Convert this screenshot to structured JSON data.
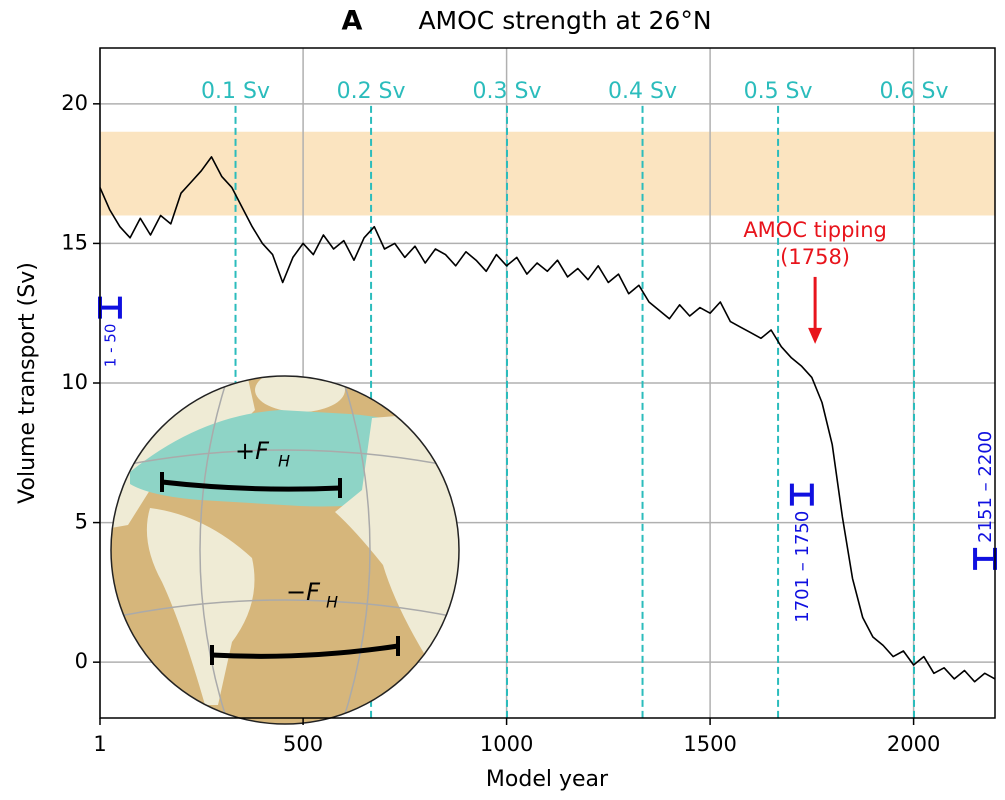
{
  "chart_data": {
    "type": "line",
    "panel_label": "A",
    "title": "AMOC strength at 26°N",
    "x_label": "Model year",
    "y_label": "Volume transport (Sv)",
    "xlim": [
      1,
      2200
    ],
    "ylim": [
      -2,
      22
    ],
    "xticks": [
      1,
      500,
      1000,
      1500,
      2000
    ],
    "yticks": [
      0,
      5,
      10,
      15,
      20
    ],
    "grid": true,
    "color": "#000000",
    "x": [
      1,
      25,
      50,
      75,
      100,
      125,
      150,
      175,
      200,
      225,
      250,
      275,
      300,
      325,
      350,
      375,
      400,
      425,
      450,
      475,
      500,
      525,
      550,
      575,
      600,
      625,
      650,
      675,
      700,
      725,
      750,
      775,
      800,
      825,
      850,
      875,
      900,
      925,
      950,
      975,
      1000,
      1025,
      1050,
      1075,
      1100,
      1125,
      1150,
      1175,
      1200,
      1225,
      1250,
      1275,
      1300,
      1325,
      1350,
      1375,
      1400,
      1425,
      1450,
      1475,
      1500,
      1525,
      1550,
      1575,
      1600,
      1625,
      1650,
      1675,
      1700,
      1725,
      1750,
      1775,
      1800,
      1825,
      1850,
      1875,
      1900,
      1925,
      1950,
      1975,
      2000,
      2025,
      2050,
      2075,
      2100,
      2125,
      2150,
      2175,
      2200
    ],
    "values": [
      17.0,
      16.2,
      15.6,
      15.2,
      15.9,
      15.3,
      16.0,
      15.7,
      16.8,
      17.2,
      17.6,
      18.1,
      17.4,
      17.0,
      16.3,
      15.6,
      15.0,
      14.6,
      13.6,
      14.5,
      15.0,
      14.6,
      15.3,
      14.8,
      15.1,
      14.4,
      15.2,
      15.6,
      14.8,
      15.0,
      14.5,
      14.9,
      14.3,
      14.8,
      14.6,
      14.2,
      14.7,
      14.4,
      14.0,
      14.6,
      14.2,
      14.5,
      13.9,
      14.3,
      14.0,
      14.4,
      13.8,
      14.1,
      13.7,
      14.2,
      13.6,
      13.9,
      13.2,
      13.5,
      12.9,
      12.6,
      12.3,
      12.8,
      12.4,
      12.7,
      12.5,
      12.9,
      12.2,
      12.0,
      11.8,
      11.6,
      11.9,
      11.3,
      10.9,
      10.6,
      10.2,
      9.3,
      7.8,
      5.2,
      3.0,
      1.6,
      0.9,
      0.6,
      0.2,
      0.4,
      -0.1,
      0.2,
      -0.4,
      -0.2,
      -0.6,
      -0.3,
      -0.7,
      -0.4,
      -0.6
    ],
    "band": {
      "ymin": 16,
      "ymax": 19,
      "color": "#fbe4c0"
    },
    "reference_lines": {
      "color": "#2bbcbc",
      "lines": [
        {
          "x": 334,
          "label": "0.1 Sv"
        },
        {
          "x": 667,
          "label": "0.2 Sv"
        },
        {
          "x": 1001,
          "label": "0.3 Sv"
        },
        {
          "x": 1334,
          "label": "0.4 Sv"
        },
        {
          "x": 1667,
          "label": "0.5 Sv"
        },
        {
          "x": 2001,
          "label": "0.6 Sv"
        }
      ]
    },
    "intervals": {
      "color": "#1010e0",
      "items": [
        {
          "label": "1 - 50",
          "start": 1,
          "end": 50,
          "value": 12.7
        },
        {
          "label": "1701 – 1750",
          "start": 1701,
          "end": 1750,
          "value": 6.0
        },
        {
          "label": "2151 – 2200",
          "start": 2151,
          "end": 2200,
          "value": 3.7
        }
      ]
    },
    "annotation": {
      "lines": [
        "AMOC tipping",
        "(1758)"
      ],
      "x": 1758,
      "y_tail": 13.8,
      "y_tip": 11.4,
      "color": "#e8141c"
    },
    "inset": {
      "north": {
        "text": "+F",
        "subscript": "H"
      },
      "south": {
        "text": "−F",
        "subscript": "H"
      }
    }
  }
}
